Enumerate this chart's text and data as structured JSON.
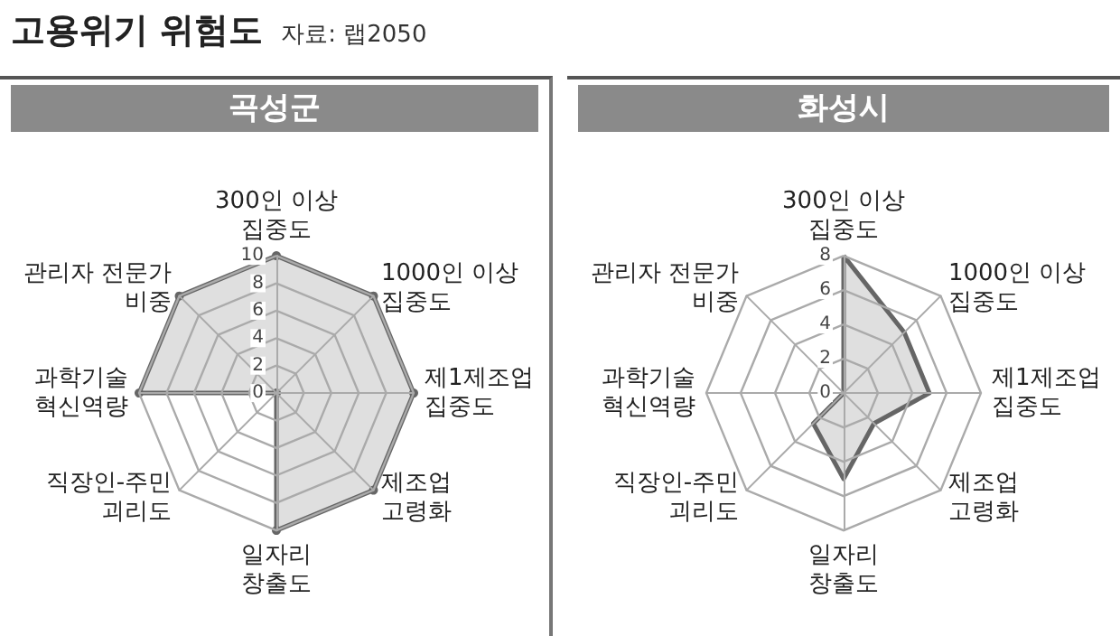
{
  "chart_data": [
    {
      "type": "radar",
      "title": "고용위기 위험도",
      "subtitle": "곡성군",
      "annotations": [
        "자료: 랩2050"
      ],
      "categories": [
        "300인 이상\n집중도",
        "1000인 이상\n집중도",
        "제1제조업\n집중도",
        "제조업\n고령화",
        "일자리\n창출도",
        "직장인-주민\n괴리도",
        "과학기술\n혁신역량",
        "관리자 전문가\n비중"
      ],
      "series": [
        {
          "color": "#666666",
          "values": [
            10,
            10,
            10,
            10,
            10,
            0,
            10,
            10
          ]
        }
      ],
      "ylim": [
        0,
        10
      ],
      "yticks": [
        0,
        2,
        4,
        6,
        8,
        10
      ],
      "marker": "circle"
    },
    {
      "type": "radar",
      "subtitle": "화성시",
      "categories": [
        "300인 이상\n집중도",
        "1000인 이상\n집중도",
        "제1제조업\n집중도",
        "제조업\n고령화",
        "일자리\n창출도",
        "직장인-주민\n괴리도",
        "과학기술\n혁신역량",
        "관리자 전문가\n비중"
      ],
      "series": [
        {
          "color": "#666666",
          "values": [
            8,
            5,
            5,
            2.5,
            5,
            2.5,
            0,
            0
          ]
        }
      ],
      "ylim": [
        0,
        8
      ],
      "yticks": [
        0,
        2,
        4,
        6,
        8
      ],
      "marker": "none"
    }
  ]
}
